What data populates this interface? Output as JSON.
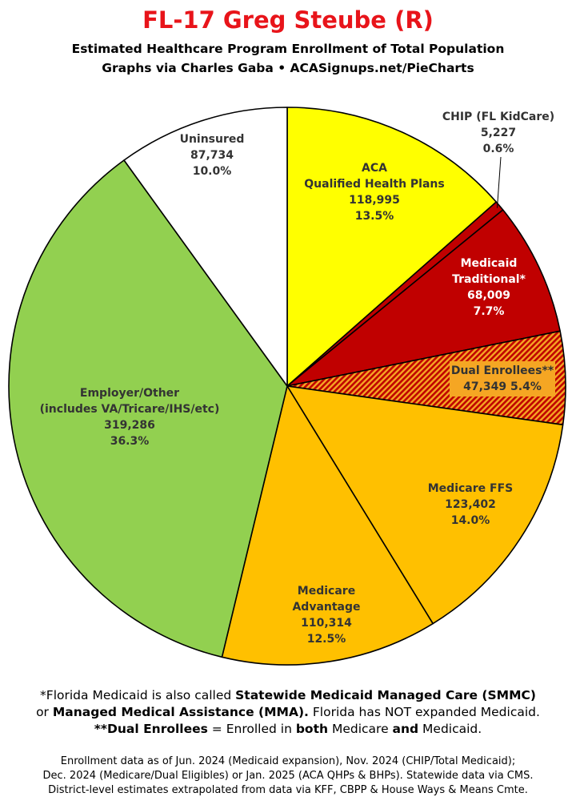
{
  "header": {
    "title": "FL-17 Greg Steube (R)",
    "subtitle": "Estimated Healthcare Program Enrollment of Total Population",
    "credit": "Graphs via Charles Gaba  •  ACASignups.net/PieCharts"
  },
  "chart_data": {
    "type": "pie",
    "title": "FL-17 Greg Steube (R)",
    "slices": [
      {
        "lines": [
          "ACA",
          "Qualified Health Plans",
          "118,995",
          "13.5%"
        ],
        "value": 118995,
        "percent": 13.5,
        "color": "#ffff00"
      },
      {
        "lines": [
          "CHIP (FL KidCare)",
          "5,227",
          "0.6%"
        ],
        "value": 5227,
        "percent": 0.6,
        "color": "#c00000"
      },
      {
        "lines": [
          "Medicaid",
          "Traditional*",
          "68,009",
          "7.7%"
        ],
        "value": 68009,
        "percent": 7.7,
        "color": "#c00000"
      },
      {
        "lines": [
          "Dual Enrollees**",
          "47,349 5.4%"
        ],
        "value": 47349,
        "percent": 5.4,
        "color": "#c00000",
        "pattern": "hatched"
      },
      {
        "lines": [
          "Medicare FFS",
          "123,402",
          "14.0%"
        ],
        "value": 123402,
        "percent": 14.0,
        "color": "#ffc000"
      },
      {
        "lines": [
          "Medicare",
          "Advantage",
          "110,314",
          "12.5%"
        ],
        "value": 110314,
        "percent": 12.5,
        "color": "#ffc000"
      },
      {
        "lines": [
          "Employer/Other",
          "(includes VA/Tricare/IHS/etc)",
          "319,286",
          "36.3%"
        ],
        "value": 319286,
        "percent": 36.3,
        "color": "#92d050"
      },
      {
        "lines": [
          "Uninsured",
          "87,734",
          "10.0%"
        ],
        "value": 87734,
        "percent": 10.0,
        "color": "#ffffff"
      }
    ]
  },
  "notes": {
    "line1_a": "*Florida Medicaid is also called ",
    "line1_b": "Statewide Medicaid Managed Care (SMMC)",
    "line2_a": "or ",
    "line2_b": "Managed Medical Assistance (MMA).",
    "line2_c": " Florida has NOT expanded Medicaid.",
    "line3_a": "**Dual Enrollees",
    "line3_b": " = Enrolled in ",
    "line3_c": "both",
    "line3_d": " Medicare ",
    "line3_e": "and",
    "line3_f": " Medicaid."
  },
  "footer": [
    "Enrollment data as of Jun. 2024 (Medicaid expansion), Nov. 2024 (CHIP/Total Medicaid);",
    "Dec. 2024 (Medicare/Dual Eligibles) or Jan. 2025 (ACA QHPs & BHPs). Statewide data via CMS.",
    "District-level estimates extrapolated from data via KFF, CBPP & House Ways & Means Cmte."
  ]
}
